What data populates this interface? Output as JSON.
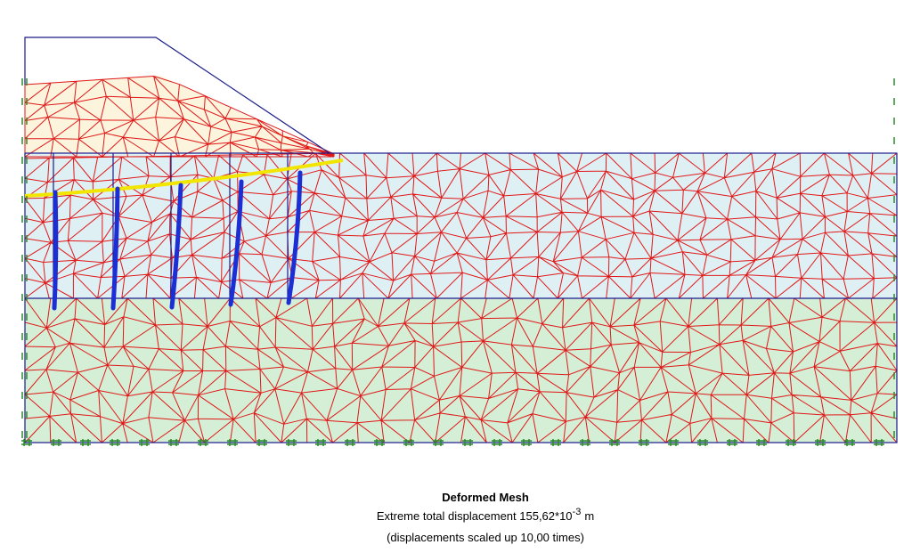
{
  "caption": {
    "title": "Deformed Mesh",
    "displacement": {
      "text": "Extreme total displacement 155,62*10",
      "exponent": "-3",
      "unit": "m"
    },
    "note": "(displacements scaled up 10,00 times)"
  }
}
